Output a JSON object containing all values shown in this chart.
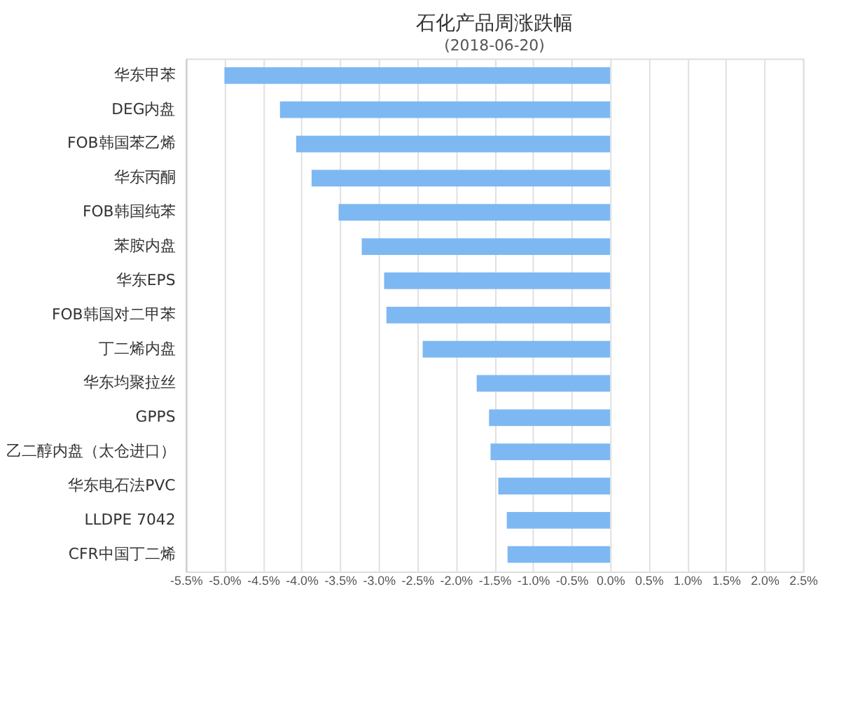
{
  "chart_data": {
    "type": "bar",
    "orientation": "horizontal",
    "title": "石化产品周涨跌幅",
    "subtitle": "(2018-06-20)",
    "categories": [
      "华东甲苯",
      "DEG内盘",
      "FOB韩国苯乙烯",
      "华东丙酮",
      "FOB韩国纯苯",
      "苯胺内盘",
      "华东EPS",
      "FOB韩国对二甲苯",
      "丁二烯内盘",
      "华东均聚拉丝",
      "GPPS",
      "乙二醇内盘（太仓进口）",
      "华东电石法PVC",
      "LLDPE 7042",
      "CFR中国丁二烯"
    ],
    "values": [
      -5.0,
      -4.28,
      -4.07,
      -3.87,
      -3.52,
      -3.22,
      -2.93,
      -2.9,
      -2.43,
      -1.73,
      -1.57,
      -1.55,
      -1.45,
      -1.34,
      -1.33
    ],
    "color": "#7eb8f2",
    "xlim": [
      -5.5,
      2.5
    ],
    "xticks": [
      {
        "value": -5.5,
        "label": "-5.5%"
      },
      {
        "value": -5.0,
        "label": "-5.0%"
      },
      {
        "value": -4.5,
        "label": "-4.5%"
      },
      {
        "value": -4.0,
        "label": "-4.0%"
      },
      {
        "value": -3.5,
        "label": "-3.5%"
      },
      {
        "value": -3.0,
        "label": "-3.0%"
      },
      {
        "value": -2.5,
        "label": "-2.5%"
      },
      {
        "value": -2.0,
        "label": "-2.0%"
      },
      {
        "value": -1.5,
        "label": "-1.5%"
      },
      {
        "value": -1.0,
        "label": "-1.0%"
      },
      {
        "value": -0.5,
        "label": "-0.5%"
      },
      {
        "value": 0.0,
        "label": "0.0%"
      },
      {
        "value": 0.5,
        "label": "0.5%"
      },
      {
        "value": 1.0,
        "label": "1.0%"
      },
      {
        "value": 1.5,
        "label": "1.5%"
      },
      {
        "value": 2.0,
        "label": "2.0%"
      },
      {
        "value": 2.5,
        "label": "2.5%"
      }
    ],
    "grid": "x"
  }
}
